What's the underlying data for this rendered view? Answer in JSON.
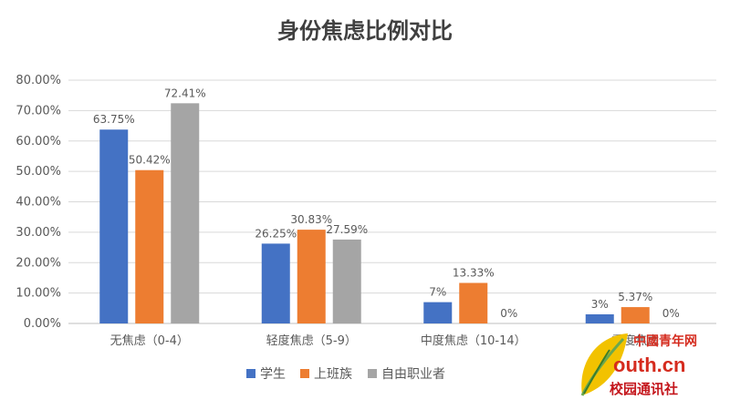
{
  "chart_data": {
    "type": "bar",
    "title": "身份焦虑比例对比",
    "categories": [
      "无焦虑（0-4）",
      "轻度焦虑（5-9）",
      "中度焦虑（10-14）",
      "重度焦虑"
    ],
    "series": [
      {
        "name": "学生",
        "values": [
          63.75,
          26.25,
          7,
          3
        ],
        "labels": [
          "63.75%",
          "26.25%",
          "7%",
          "3%"
        ],
        "color": "#4472C4"
      },
      {
        "name": "上班族",
        "values": [
          50.42,
          30.83,
          13.33,
          5.37
        ],
        "labels": [
          "50.42%",
          "30.83%",
          "13.33%",
          "5.37%"
        ],
        "color": "#ED7D31"
      },
      {
        "name": "自由职业者",
        "values": [
          72.41,
          27.59,
          0,
          0
        ],
        "labels": [
          "72.41%",
          "27.59%",
          "0%",
          "0%"
        ],
        "color": "#A5A5A5"
      }
    ],
    "yticks": [
      "0.00%",
      "10.00%",
      "20.00%",
      "30.00%",
      "40.00%",
      "50.00%",
      "60.00%",
      "70.00%",
      "80.00%"
    ],
    "ylim": [
      0,
      80
    ],
    "grid": true,
    "legend_position": "bottom"
  },
  "watermark": {
    "line1": "中國青年网",
    "line2": "outh.cn",
    "line3": "校园通讯社"
  }
}
